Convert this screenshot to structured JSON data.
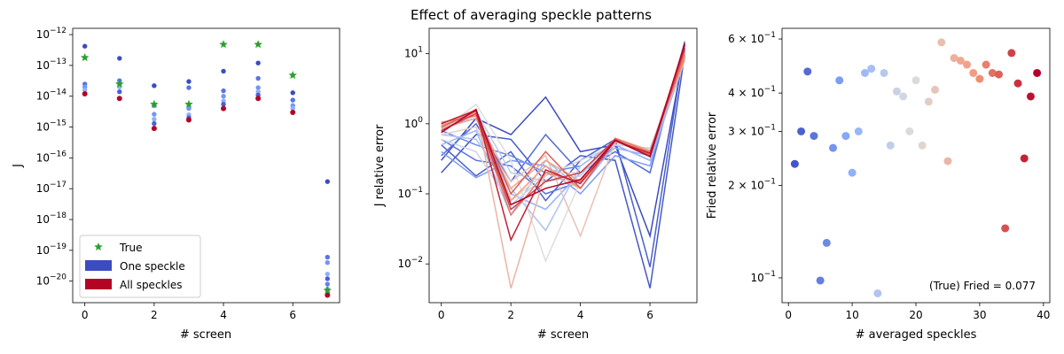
{
  "title": "Effect of averaging speckle patterns",
  "colors": {
    "one": "#3b4cc0",
    "all": "#b40426",
    "true": "#2ca02c"
  },
  "chart_data": [
    {
      "type": "scatter",
      "xlabel": "# screen",
      "ylabel": "J",
      "yscale": "log",
      "xlim": [
        -0.35,
        7.35
      ],
      "ylim": [
        2e-21,
        1.6e-12
      ],
      "xticks": [
        0,
        2,
        4,
        6
      ],
      "xtick_labels": [
        "0",
        "2",
        "4",
        "6"
      ],
      "yticks": [
        1e-20,
        1e-19,
        1e-18,
        1e-17,
        1e-16,
        1e-15,
        1e-14,
        1e-13,
        1e-12
      ],
      "ytick_labels": [
        {
          "base": "10",
          "exp": "−20"
        },
        {
          "base": "10",
          "exp": "−19"
        },
        {
          "base": "10",
          "exp": "−18"
        },
        {
          "base": "10",
          "exp": "−17"
        },
        {
          "base": "10",
          "exp": "−16"
        },
        {
          "base": "10",
          "exp": "−15"
        },
        {
          "base": "10",
          "exp": "−14"
        },
        {
          "base": "10",
          "exp": "−13"
        },
        {
          "base": "10",
          "exp": "−12"
        }
      ],
      "legend": {
        "position": "lower left",
        "entries": [
          {
            "label": "True",
            "marker": "star",
            "color": "#2ca02c"
          },
          {
            "label": "One speckle",
            "marker": "patch",
            "color": "#3b4cc0"
          },
          {
            "label": "All speckles",
            "marker": "patch",
            "color": "#b40426"
          }
        ]
      },
      "true_values": [
        1.8e-13,
        2.5e-14,
        5.5e-15,
        5.5e-15,
        4.8e-13,
        4.8e-13,
        4.8e-14,
        5e-21
      ],
      "speckle_values": [
        [
          4.2e-13,
          2.5e-14,
          2e-14,
          1.6e-14
        ],
        [
          1.7e-13,
          3.2e-14,
          2.6e-14,
          2e-14,
          1.4e-14
        ],
        [
          2.2e-14,
          5e-15,
          2.6e-15,
          1.8e-15,
          1.3e-15
        ],
        [
          3e-14,
          1.9e-14,
          4e-15,
          2.5e-15,
          2e-15
        ],
        [
          6.5e-14,
          1.5e-14,
          1e-14,
          7e-15,
          5.5e-15
        ],
        [
          1.2e-13,
          3.8e-14,
          1.9e-14,
          1.4e-14,
          1.1e-14
        ],
        [
          1.3e-14,
          7.5e-15,
          5e-15,
          4e-15
        ],
        [
          1.7e-17,
          6e-20,
          4e-20,
          1.7e-20,
          1.2e-20,
          8e-21,
          5.5e-21
        ]
      ],
      "all_speckles_values": [
        1.2e-14,
        8.5e-15,
        9e-16,
        1.7e-15,
        4e-15,
        8.5e-15,
        3e-15,
        3.5e-21
      ]
    },
    {
      "type": "line",
      "xlabel": "# screen",
      "ylabel": "J relative error",
      "yscale": "log",
      "xlim": [
        -0.35,
        7.35
      ],
      "ylim": [
        0.0028,
        23
      ],
      "xticks": [
        0,
        2,
        4,
        6
      ],
      "xtick_labels": [
        "0",
        "2",
        "4",
        "6"
      ],
      "yticks": [
        0.01,
        0.1,
        1,
        10
      ],
      "ytick_labels": [
        {
          "base": "10",
          "exp": "−2"
        },
        {
          "base": "10",
          "exp": "−1"
        },
        {
          "base": "10",
          "exp": "0"
        },
        {
          "base": "10",
          "exp": "1"
        }
      ],
      "x": [
        0,
        1,
        2,
        3,
        4,
        5,
        6,
        7
      ],
      "colormap": "coolwarm",
      "series": [
        {
          "t": 0.0,
          "values": [
            0.3,
            1.2,
            0.7,
            2.4,
            0.4,
            0.5,
            0.025,
            12
          ]
        },
        {
          "t": 0.03,
          "values": [
            0.2,
            0.7,
            0.6,
            0.15,
            0.35,
            0.3,
            0.0045,
            10
          ]
        },
        {
          "t": 0.05,
          "values": [
            0.5,
            0.18,
            0.4,
            0.08,
            0.3,
            0.6,
            0.009,
            14
          ]
        },
        {
          "t": 0.08,
          "values": [
            0.35,
            1.0,
            0.15,
            0.7,
            0.2,
            0.4,
            0.2,
            15
          ]
        },
        {
          "t": 0.1,
          "values": [
            0.6,
            0.3,
            0.25,
            0.1,
            0.15,
            0.5,
            0.3,
            9
          ]
        },
        {
          "t": 0.15,
          "values": [
            0.8,
            0.5,
            0.35,
            0.2,
            0.25,
            0.55,
            0.4,
            8
          ]
        },
        {
          "t": 0.2,
          "values": [
            0.4,
            0.17,
            0.3,
            0.25,
            0.1,
            0.35,
            0.25,
            11
          ]
        },
        {
          "t": 0.25,
          "values": [
            0.9,
            1.2,
            0.1,
            0.06,
            0.2,
            0.45,
            0.35,
            9
          ]
        },
        {
          "t": 0.3,
          "values": [
            0.5,
            0.8,
            0.05,
            0.3,
            0.12,
            0.5,
            0.3,
            8
          ]
        },
        {
          "t": 0.35,
          "values": [
            0.7,
            0.6,
            0.12,
            0.03,
            0.25,
            0.55,
            0.4,
            12
          ]
        },
        {
          "t": 0.4,
          "values": [
            1.0,
            1.5,
            0.2,
            0.15,
            0.18,
            0.6,
            0.35,
            10
          ]
        },
        {
          "t": 0.45,
          "values": [
            0.6,
            0.4,
            0.07,
            0.18,
            0.3,
            0.5,
            0.45,
            9
          ]
        },
        {
          "t": 0.5,
          "values": [
            0.8,
            1.9,
            0.3,
            0.011,
            0.15,
            0.55,
            0.4,
            8
          ]
        },
        {
          "t": 0.55,
          "values": [
            0.7,
            0.9,
            0.08,
            0.2,
            0.2,
            0.6,
            0.4,
            10
          ]
        },
        {
          "t": 0.6,
          "values": [
            0.9,
            1.3,
            0.15,
            0.35,
            0.025,
            0.55,
            0.38,
            9
          ]
        },
        {
          "t": 0.65,
          "values": [
            1.0,
            1.6,
            0.0045,
            0.2,
            0.12,
            0.62,
            0.42,
            8
          ]
        },
        {
          "t": 0.7,
          "values": [
            0.85,
            1.2,
            0.12,
            0.3,
            0.15,
            0.58,
            0.4,
            9
          ]
        },
        {
          "t": 0.75,
          "values": [
            0.95,
            1.4,
            0.08,
            0.25,
            0.12,
            0.6,
            0.38,
            10
          ]
        },
        {
          "t": 0.8,
          "values": [
            1.05,
            1.3,
            0.05,
            0.2,
            0.15,
            0.62,
            0.4,
            9
          ]
        },
        {
          "t": 0.85,
          "values": [
            0.9,
            1.5,
            0.1,
            0.4,
            0.12,
            0.58,
            0.36,
            11
          ]
        },
        {
          "t": 0.9,
          "values": [
            0.8,
            1.4,
            0.06,
            0.15,
            0.2,
            0.6,
            0.34,
            12
          ]
        },
        {
          "t": 0.95,
          "values": [
            1.0,
            1.55,
            0.022,
            0.22,
            0.14,
            0.57,
            0.38,
            13
          ]
        },
        {
          "t": 1.0,
          "values": [
            0.75,
            1.6,
            0.07,
            0.12,
            0.16,
            0.58,
            0.34,
            14
          ]
        }
      ]
    },
    {
      "type": "scatter",
      "xlabel": "# averaged speckles",
      "ylabel": "Fried relative error",
      "yscale": "log",
      "xlim": [
        -1,
        41
      ],
      "ylim": [
        0.083,
        0.65
      ],
      "xticks": [
        0,
        10,
        20,
        30,
        40
      ],
      "xtick_labels": [
        "0",
        "10",
        "20",
        "30",
        "40"
      ],
      "yticks": [
        0.1,
        0.2,
        0.3,
        0.4,
        0.6
      ],
      "ytick_labels": [
        {
          "base": "10",
          "exp": "−1",
          "mult": ""
        },
        {
          "base": "10",
          "exp": "−1",
          "mult": "2 × "
        },
        {
          "base": "10",
          "exp": "−1",
          "mult": "3 × "
        },
        {
          "base": "10",
          "exp": "−1",
          "mult": "4 × "
        },
        {
          "base": "10",
          "exp": "−1",
          "mult": "6 × "
        }
      ],
      "annotation": "(True) Fried = 0.077",
      "colormap": "coolwarm",
      "x_max": 39,
      "x": [
        1,
        2,
        3,
        4,
        5,
        6,
        7,
        8,
        9,
        10,
        11,
        12,
        13,
        14,
        15,
        16,
        17,
        18,
        19,
        20,
        21,
        22,
        23,
        24,
        25,
        26,
        27,
        28,
        29,
        30,
        31,
        32,
        33,
        34,
        35,
        36,
        37,
        38,
        39
      ],
      "y": [
        0.235,
        0.3,
        0.47,
        0.29,
        0.098,
        0.13,
        0.265,
        0.44,
        0.29,
        0.22,
        0.3,
        0.465,
        0.48,
        0.089,
        0.465,
        0.27,
        0.405,
        0.39,
        0.3,
        0.44,
        0.27,
        0.375,
        0.41,
        0.585,
        0.24,
        0.52,
        0.51,
        0.495,
        0.465,
        0.445,
        0.495,
        0.465,
        0.46,
        0.145,
        0.54,
        0.43,
        0.245,
        0.39,
        0.465
      ]
    }
  ]
}
